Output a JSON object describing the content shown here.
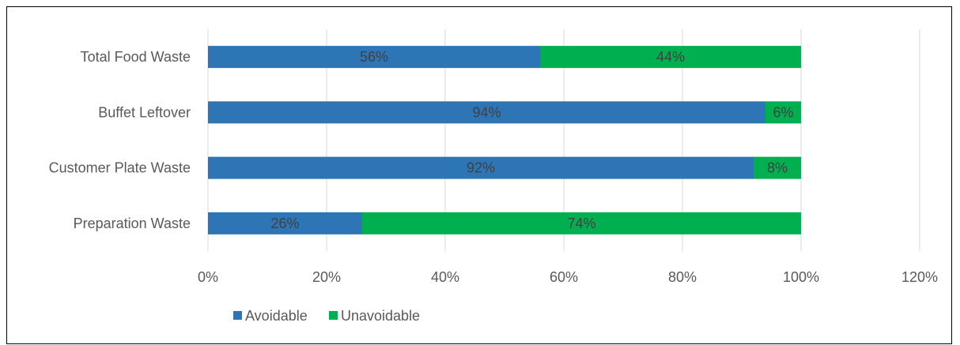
{
  "chart_data": {
    "type": "bar",
    "orientation": "horizontal",
    "stacked": true,
    "categories": [
      "Total Food Waste",
      "Buffet Leftover",
      "Customer Plate Waste",
      "Preparation Waste"
    ],
    "series": [
      {
        "name": "Avoidable",
        "values": [
          56,
          94,
          92,
          26
        ],
        "labels": [
          "56%",
          "94%",
          "92%",
          "26%"
        ],
        "color": "#2E75B6"
      },
      {
        "name": "Unavoidable",
        "values": [
          44,
          6,
          8,
          74
        ],
        "labels": [
          "44%",
          "6%",
          "8%",
          "74%"
        ],
        "color": "#00B050"
      }
    ],
    "xlim": [
      0,
      120
    ],
    "xticks": [
      "0%",
      "20%",
      "40%",
      "60%",
      "80%",
      "100%",
      "120%"
    ],
    "grid": "vertical",
    "legend": "bottom",
    "gridline_color": "#D9D9D9"
  }
}
